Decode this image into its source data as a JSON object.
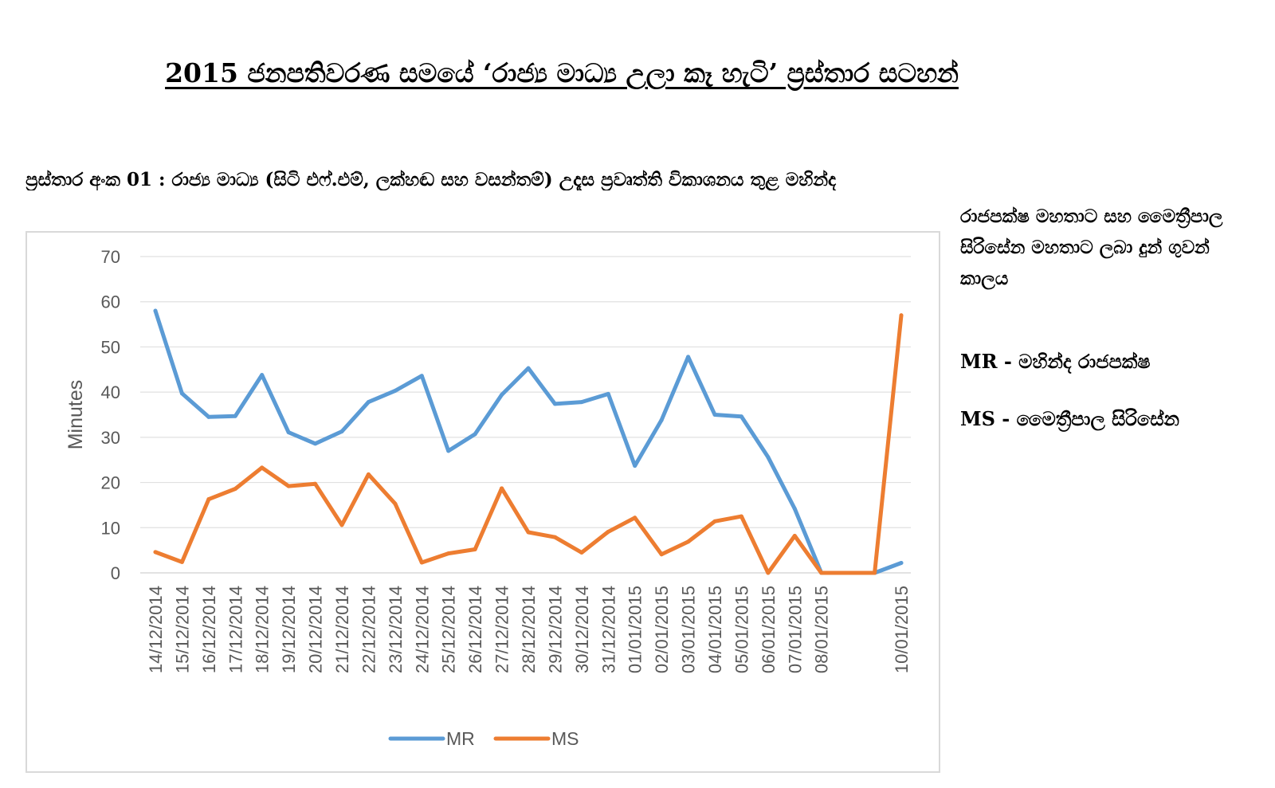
{
  "page": {
    "title": "2015 ජනපතිවරණ සමයේ ‘රාජ්‍ය මාධ්‍ය උලා කෑ හැටි’ ප්‍රස්තාර සටහන්",
    "subtitle_line1": "ප්‍රස්තාර අංක 01 : රාජ්‍ය මාධ්‍ය (සිටි එෆ්.එම්, ලක්හඬ සහ වසන්තම්) උදෑස ප්‍රවෘත්ති විකාශනය තුළ මහින්ද",
    "subtitle_line2": "රාජපක්ෂ මහතාට සහ මෛත්‍රීපාල සිරිසේන මහතාට ලබා දුන් ගුවන් කාලය",
    "note_mr": "MR - මහින්ද රාජපක්ෂ",
    "note_ms": "MS - මෛත්‍රීපාල සිරිසේන"
  },
  "chart_data": {
    "type": "line",
    "ylabel": "Minutes",
    "xlabel": "",
    "ylim": [
      0,
      70
    ],
    "yticks": [
      0,
      10,
      20,
      30,
      40,
      50,
      60,
      70
    ],
    "grid": true,
    "legend_position": "bottom",
    "categories": [
      "14/12/2014",
      "15/12/2014",
      "16/12/2014",
      "17/12/2014",
      "18/12/2014",
      "19/12/2014",
      "20/12/2014",
      "21/12/2014",
      "22/12/2014",
      "23/12/2014",
      "24/12/2014",
      "25/12/2014",
      "26/12/2014",
      "27/12/2014",
      "28/12/2014",
      "29/12/2014",
      "30/12/2014",
      "31/12/2014",
      "01/01/2015",
      "02/01/2015",
      "03/01/2015",
      "04/01/2015",
      "05/01/2015",
      "06/01/2015",
      "07/01/2015",
      "08/01/2015",
      "",
      "",
      "10/01/2015"
    ],
    "series": [
      {
        "name": "MR",
        "color": "#5b9bd5",
        "values": [
          58,
          39.7,
          34.5,
          34.7,
          43.8,
          31.1,
          28.6,
          31.3,
          37.8,
          40.3,
          43.6,
          27,
          30.7,
          39.4,
          45.3,
          37.4,
          37.8,
          39.6,
          23.7,
          33.8,
          47.8,
          35,
          34.6,
          25.6,
          14.2,
          0,
          0,
          0,
          2.2
        ]
      },
      {
        "name": "MS",
        "color": "#ed7d31",
        "values": [
          4.6,
          2.4,
          16.3,
          18.6,
          23.3,
          19.2,
          19.7,
          10.6,
          21.8,
          15.3,
          2.3,
          4.3,
          5.2,
          18.7,
          9,
          7.9,
          4.5,
          9.1,
          12.2,
          4.1,
          6.9,
          11.4,
          12.5,
          0,
          8.2,
          0,
          0,
          0,
          57
        ]
      }
    ]
  }
}
